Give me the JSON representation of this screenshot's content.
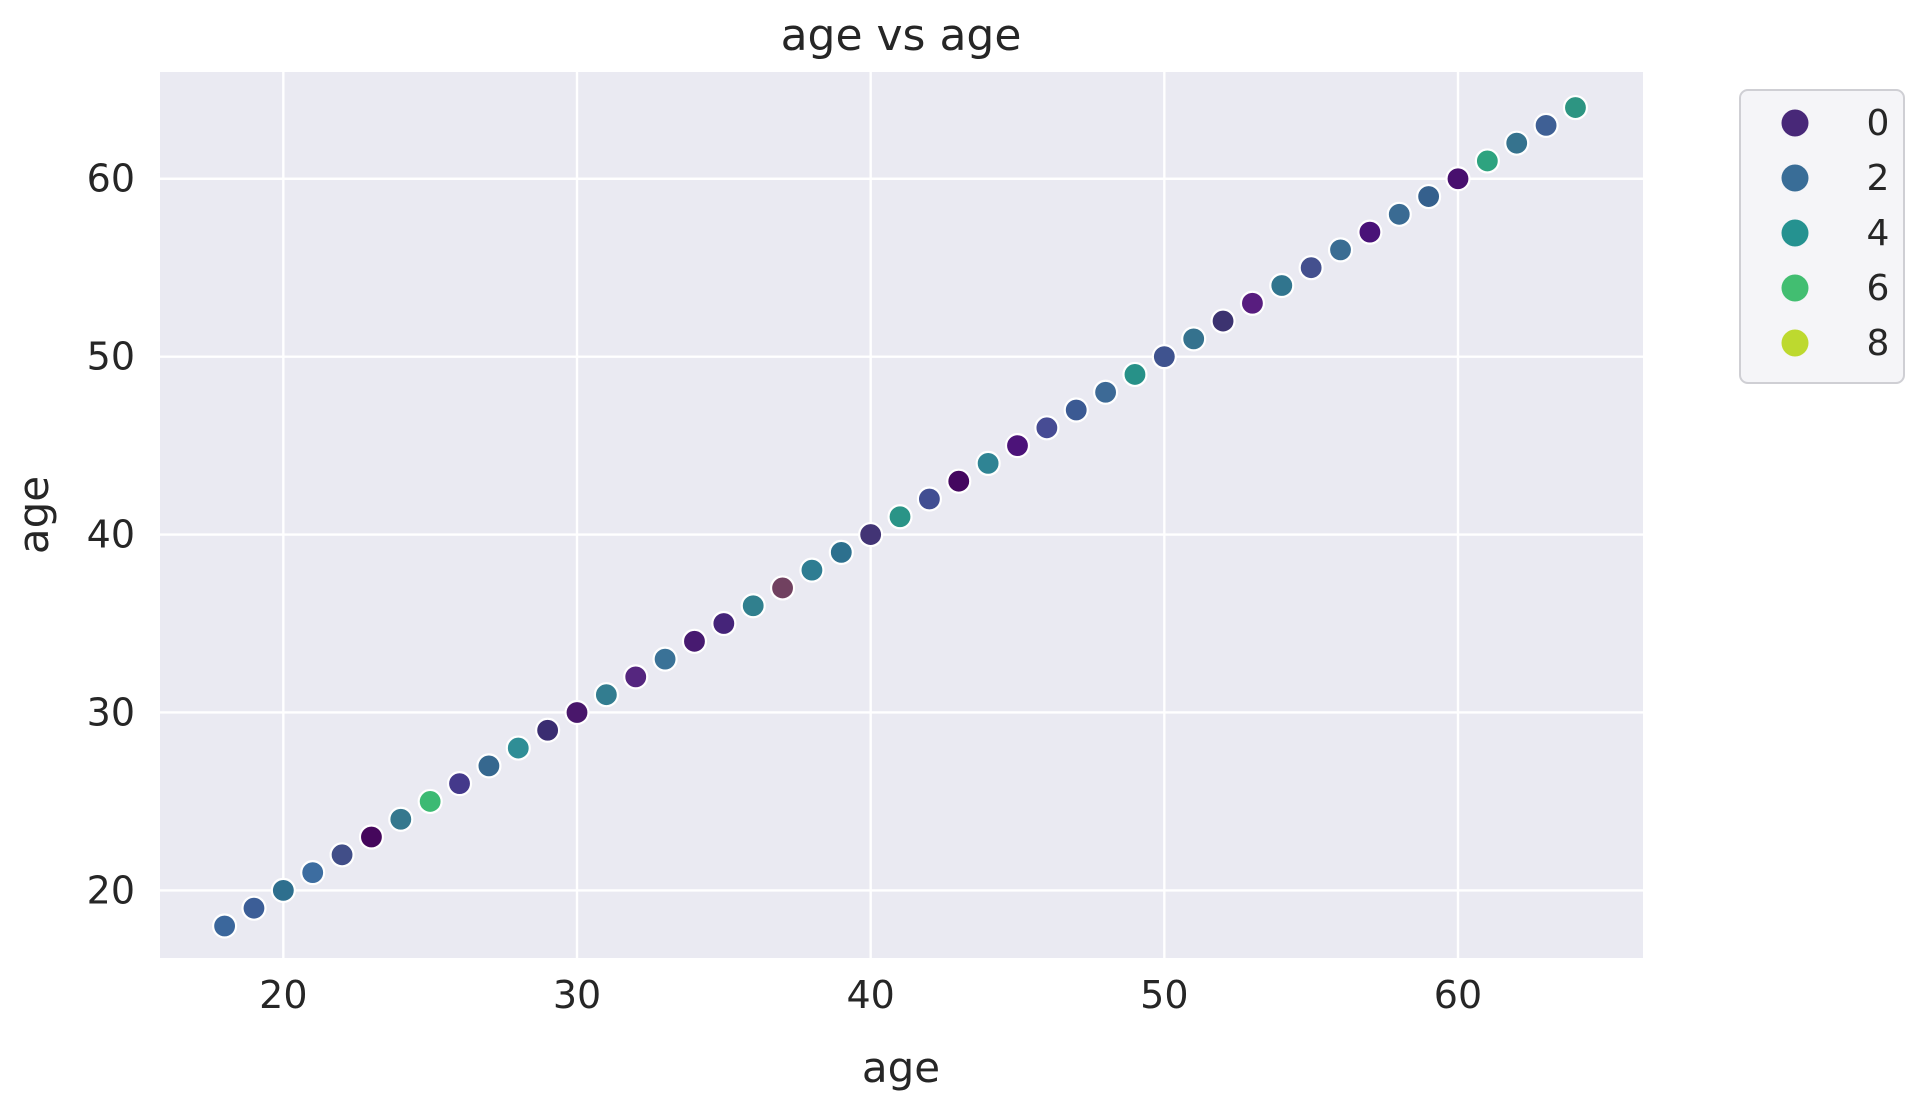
{
  "chart_data": {
    "type": "scatter",
    "title": "age vs age",
    "xlabel": "age",
    "ylabel": "age",
    "xlim": [
      15.8,
      66.3
    ],
    "ylim": [
      16.2,
      66.0
    ],
    "xticks": [
      20,
      30,
      40,
      50,
      60
    ],
    "yticks": [
      20,
      30,
      40,
      50,
      60
    ],
    "grid": true,
    "plot_background": "#eaeaf2",
    "grid_color": "#ffffff",
    "text_color": "#262626",
    "marker": {
      "radius": 11.5,
      "edge_color": "#ffffff",
      "edge_width": 2.2
    },
    "legend": {
      "position": "outside-upper-right",
      "entries": [
        {
          "label": "0",
          "color": "#482878"
        },
        {
          "label": "2",
          "color": "#396d97"
        },
        {
          "label": "4",
          "color": "#259290"
        },
        {
          "label": "6",
          "color": "#42be71"
        },
        {
          "label": "8",
          "color": "#bdd92f"
        }
      ]
    },
    "points": [
      {
        "x": 18,
        "y": 18,
        "color": "#3b679c"
      },
      {
        "x": 19,
        "y": 19,
        "color": "#3c5e97"
      },
      {
        "x": 20,
        "y": 20,
        "color": "#2e6f8e"
      },
      {
        "x": 21,
        "y": 21,
        "color": "#3d6da0"
      },
      {
        "x": 22,
        "y": 22,
        "color": "#414e88"
      },
      {
        "x": 23,
        "y": 23,
        "color": "#45075c"
      },
      {
        "x": 24,
        "y": 24,
        "color": "#35788e"
      },
      {
        "x": 25,
        "y": 25,
        "color": "#3cba73"
      },
      {
        "x": 26,
        "y": 26,
        "color": "#44398b"
      },
      {
        "x": 27,
        "y": 27,
        "color": "#36688f"
      },
      {
        "x": 28,
        "y": 28,
        "color": "#2f8e96"
      },
      {
        "x": 29,
        "y": 29,
        "color": "#3a2d71"
      },
      {
        "x": 30,
        "y": 30,
        "color": "#49176b"
      },
      {
        "x": 31,
        "y": 31,
        "color": "#337d90"
      },
      {
        "x": 32,
        "y": 32,
        "color": "#55267f"
      },
      {
        "x": 33,
        "y": 33,
        "color": "#3a7297"
      },
      {
        "x": 34,
        "y": 34,
        "color": "#471a70"
      },
      {
        "x": 35,
        "y": 35,
        "color": "#452479"
      },
      {
        "x": 36,
        "y": 36,
        "color": "#31808e"
      },
      {
        "x": 37,
        "y": 37,
        "color": "#714160"
      },
      {
        "x": 38,
        "y": 38,
        "color": "#2e7d92"
      },
      {
        "x": 39,
        "y": 39,
        "color": "#2d708e"
      },
      {
        "x": 40,
        "y": 40,
        "color": "#423475"
      },
      {
        "x": 41,
        "y": 41,
        "color": "#2a9487"
      },
      {
        "x": 42,
        "y": 42,
        "color": "#414e92"
      },
      {
        "x": 43,
        "y": 43,
        "color": "#44075f"
      },
      {
        "x": 44,
        "y": 44,
        "color": "#2f8494"
      },
      {
        "x": 45,
        "y": 45,
        "color": "#4c1379"
      },
      {
        "x": 46,
        "y": 46,
        "color": "#474c94"
      },
      {
        "x": 47,
        "y": 47,
        "color": "#3b5a93"
      },
      {
        "x": 48,
        "y": 48,
        "color": "#3d6a96"
      },
      {
        "x": 49,
        "y": 49,
        "color": "#279188"
      },
      {
        "x": 50,
        "y": 50,
        "color": "#3f538f"
      },
      {
        "x": 51,
        "y": 51,
        "color": "#35728e"
      },
      {
        "x": 52,
        "y": 52,
        "color": "#3c3370"
      },
      {
        "x": 53,
        "y": 53,
        "color": "#581d7f"
      },
      {
        "x": 54,
        "y": 54,
        "color": "#31758e"
      },
      {
        "x": 55,
        "y": 55,
        "color": "#44508e"
      },
      {
        "x": 56,
        "y": 56,
        "color": "#3a6d93"
      },
      {
        "x": 57,
        "y": 57,
        "color": "#491278"
      },
      {
        "x": 58,
        "y": 58,
        "color": "#3a6b93"
      },
      {
        "x": 59,
        "y": 59,
        "color": "#35608d"
      },
      {
        "x": 60,
        "y": 60,
        "color": "#48106e"
      },
      {
        "x": 61,
        "y": 61,
        "color": "#2ea37f"
      },
      {
        "x": 62,
        "y": 62,
        "color": "#36738e"
      },
      {
        "x": 63,
        "y": 63,
        "color": "#3f6095"
      },
      {
        "x": 64,
        "y": 64,
        "color": "#2d9582"
      }
    ]
  }
}
